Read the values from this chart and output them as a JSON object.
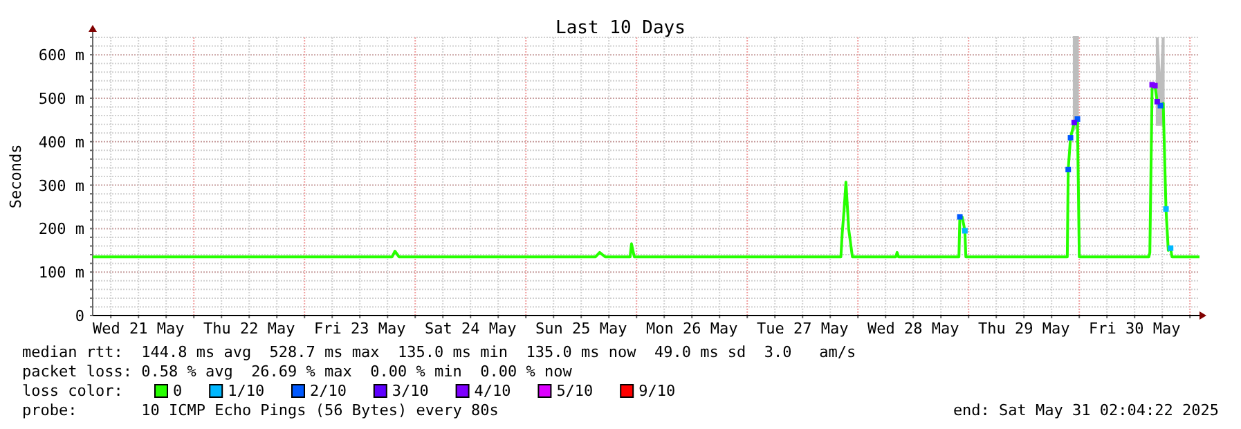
{
  "chart_data": {
    "type": "line",
    "title": "Last 10 Days",
    "ylabel": "Seconds",
    "legend_title": "loss color:",
    "legend": "bottom",
    "grid": true,
    "xlim": [
      "2025-05-21T02:04",
      "2025-05-31T02:04"
    ],
    "xticks": [
      {
        "value": "2025-05-21T06:00",
        "label": null
      },
      {
        "value": "2025-05-21T12:00",
        "label": "Wed 21 May"
      },
      {
        "value": "2025-05-21T18:00",
        "label": null
      },
      {
        "value": "2025-05-22T00:00",
        "label": null
      },
      {
        "value": "2025-05-22T06:00",
        "label": null
      },
      {
        "value": "2025-05-22T12:00",
        "label": "Thu 22 May"
      },
      {
        "value": "2025-05-22T18:00",
        "label": null
      },
      {
        "value": "2025-05-23T00:00",
        "label": null
      },
      {
        "value": "2025-05-23T06:00",
        "label": null
      },
      {
        "value": "2025-05-23T12:00",
        "label": "Fri 23 May"
      },
      {
        "value": "2025-05-23T18:00",
        "label": null
      },
      {
        "value": "2025-05-24T00:00",
        "label": null
      },
      {
        "value": "2025-05-24T06:00",
        "label": null
      },
      {
        "value": "2025-05-24T12:00",
        "label": "Sat 24 May"
      },
      {
        "value": "2025-05-24T18:00",
        "label": null
      },
      {
        "value": "2025-05-25T00:00",
        "label": null
      },
      {
        "value": "2025-05-25T06:00",
        "label": null
      },
      {
        "value": "2025-05-25T12:00",
        "label": "Sun 25 May"
      },
      {
        "value": "2025-05-25T18:00",
        "label": null
      },
      {
        "value": "2025-05-26T00:00",
        "label": null
      },
      {
        "value": "2025-05-26T06:00",
        "label": null
      },
      {
        "value": "2025-05-26T12:00",
        "label": "Mon 26 May"
      },
      {
        "value": "2025-05-26T18:00",
        "label": null
      },
      {
        "value": "2025-05-27T00:00",
        "label": null
      },
      {
        "value": "2025-05-27T06:00",
        "label": null
      },
      {
        "value": "2025-05-27T12:00",
        "label": "Tue 27 May"
      },
      {
        "value": "2025-05-27T18:00",
        "label": null
      },
      {
        "value": "2025-05-28T00:00",
        "label": null
      },
      {
        "value": "2025-05-28T06:00",
        "label": null
      },
      {
        "value": "2025-05-28T12:00",
        "label": "Wed 28 May"
      },
      {
        "value": "2025-05-28T18:00",
        "label": null
      },
      {
        "value": "2025-05-29T00:00",
        "label": null
      },
      {
        "value": "2025-05-29T06:00",
        "label": null
      },
      {
        "value": "2025-05-29T12:00",
        "label": "Thu 29 May"
      },
      {
        "value": "2025-05-29T18:00",
        "label": null
      },
      {
        "value": "2025-05-30T00:00",
        "label": null
      },
      {
        "value": "2025-05-30T06:00",
        "label": null
      },
      {
        "value": "2025-05-30T12:00",
        "label": "Fri 30 May"
      },
      {
        "value": "2025-05-30T18:00",
        "label": null
      },
      {
        "value": "2025-05-31T00:00",
        "label": null
      }
    ],
    "ylim": [
      0,
      640
    ],
    "yticks": [
      0,
      {
        "value": 20,
        "label": null
      },
      {
        "value": 40,
        "label": null
      },
      {
        "value": 60,
        "label": null
      },
      {
        "value": 80,
        "label": null
      },
      {
        "value": 100,
        "label": "100 m"
      },
      {
        "value": 120,
        "label": null
      },
      {
        "value": 140,
        "label": null
      },
      {
        "value": 160,
        "label": null
      },
      {
        "value": 180,
        "label": null
      },
      {
        "value": 200,
        "label": "200 m"
      },
      {
        "value": 220,
        "label": null
      },
      {
        "value": 240,
        "label": null
      },
      {
        "value": 260,
        "label": null
      },
      {
        "value": 280,
        "label": null
      },
      {
        "value": 300,
        "label": "300 m"
      },
      {
        "value": 320,
        "label": null
      },
      {
        "value": 340,
        "label": null
      },
      {
        "value": 360,
        "label": null
      },
      {
        "value": 380,
        "label": null
      },
      {
        "value": 400,
        "label": "400 m"
      },
      {
        "value": 420,
        "label": null
      },
      {
        "value": 440,
        "label": null
      },
      {
        "value": 460,
        "label": null
      },
      {
        "value": 480,
        "label": null
      },
      {
        "value": 500,
        "label": "500 m"
      },
      {
        "value": 520,
        "label": null
      },
      {
        "value": 540,
        "label": null
      },
      {
        "value": 560,
        "label": null
      },
      {
        "value": 580,
        "label": null
      },
      {
        "value": 600,
        "label": "600 m"
      },
      {
        "value": 620,
        "label": null
      },
      {
        "value": 640,
        "label": null
      }
    ],
    "series": [
      {
        "name": "0",
        "color": "#26ff00",
        "marker": "none",
        "line_style": "solid",
        "x": [
          "2025-05-21T02:04",
          "2025-05-23T19:00",
          "2025-05-23T19:36",
          "2025-05-23T20:30",
          "2025-05-25T15:06",
          "2025-05-25T16:00",
          "2025-05-25T17:12",
          "2025-05-25T22:36",
          "2025-05-25T22:54",
          "2025-05-25T23:30",
          "2025-05-27T20:18",
          "2025-05-27T20:36",
          "2025-05-27T21:00",
          "2025-05-27T21:24",
          "2025-05-27T22:00",
          "2025-05-27T22:48",
          "2025-05-28T08:12",
          "2025-05-28T08:30",
          "2025-05-28T08:48",
          "2025-05-28T21:54",
          "2025-05-28T22:06",
          "2025-05-28T22:36",
          "2025-05-28T23:12",
          "2025-05-28T23:24",
          "2025-05-29T21:24",
          "2025-05-29T21:36",
          "2025-05-29T22:06",
          "2025-05-29T22:54",
          "2025-05-29T23:36",
          "2025-05-30T00:00",
          "2025-05-30T15:06",
          "2025-05-30T15:18",
          "2025-05-30T15:48",
          "2025-05-30T16:24",
          "2025-05-30T16:54",
          "2025-05-30T17:36",
          "2025-05-30T18:12",
          "2025-05-30T18:48",
          "2025-05-30T19:18",
          "2025-05-30T19:48",
          "2025-05-30T20:06",
          "2025-05-31T02:04"
        ],
        "values": [
          135,
          135,
          148,
          135,
          135,
          145,
          135,
          135,
          165,
          135,
          135,
          190,
          243,
          307,
          199,
          135,
          135,
          145,
          135,
          135,
          227,
          227,
          195,
          135,
          135,
          336,
          409,
          444,
          452,
          135,
          135,
          145,
          531,
          529,
          492,
          483,
          488,
          245,
          150,
          155,
          135,
          135
        ],
        "lower": [
          null,
          null,
          null,
          null,
          null,
          null,
          null,
          null,
          null,
          null,
          null,
          null,
          null,
          null,
          null,
          null,
          null,
          null,
          null,
          null,
          null,
          null,
          null,
          null,
          null,
          null,
          null,
          430,
          440,
          null,
          null,
          null,
          null,
          null,
          440,
          440,
          440,
          null,
          null,
          null,
          null,
          null
        ],
        "upper": [
          null,
          null,
          null,
          null,
          null,
          null,
          null,
          null,
          null,
          null,
          null,
          null,
          null,
          null,
          null,
          null,
          null,
          null,
          null,
          null,
          null,
          null,
          null,
          null,
          null,
          null,
          null,
          640,
          640,
          null,
          null,
          null,
          null,
          null,
          640,
          490,
          640,
          null,
          null,
          null,
          null,
          null
        ]
      },
      {
        "name": "1/10",
        "type": "scatter",
        "color": "#00b8ff",
        "marker": "square",
        "x": [
          "2025-05-28T23:12",
          "2025-05-30T18:48",
          "2025-05-30T19:48"
        ],
        "values": [
          195,
          245,
          155
        ]
      },
      {
        "name": "2/10",
        "type": "scatter",
        "color": "#0059ff",
        "marker": "square",
        "x": [
          "2025-05-28T22:06",
          "2025-05-29T21:36",
          "2025-05-29T22:06",
          "2025-05-29T23:36",
          "2025-05-30T17:36"
        ],
        "values": [
          227,
          336,
          409,
          452,
          483
        ]
      },
      {
        "name": "3/10",
        "type": "scatter",
        "color": "#5e00ff",
        "marker": "square",
        "x": [
          "2025-05-29T22:54",
          "2025-05-30T16:54"
        ],
        "values": [
          444,
          492
        ]
      },
      {
        "name": "4/10",
        "type": "scatter",
        "color": "#7e00ff",
        "marker": "square",
        "x": [
          "2025-05-30T15:48",
          "2025-05-30T16:24"
        ],
        "values": [
          531,
          529
        ]
      },
      {
        "name": "5/10",
        "type": "scatter",
        "color": "#dd00ff",
        "marker": "square"
      },
      {
        "name": "9/10",
        "type": "scatter",
        "color": "#ff0000",
        "marker": "square"
      }
    ],
    "annotations": [
      "median rtt:  144.8 ms avg  528.7 ms max  135.0 ms min  135.0 ms now  49.0 ms sd  3.0   am/s",
      "packet loss: 0.58 % avg  26.69 % max  0.00 % min  0.00 % now",
      "probe:       10 ICMP Echo Pings (56 Bytes) every 80s",
      "end: Sat May 31 02:04:22 2025"
    ]
  }
}
